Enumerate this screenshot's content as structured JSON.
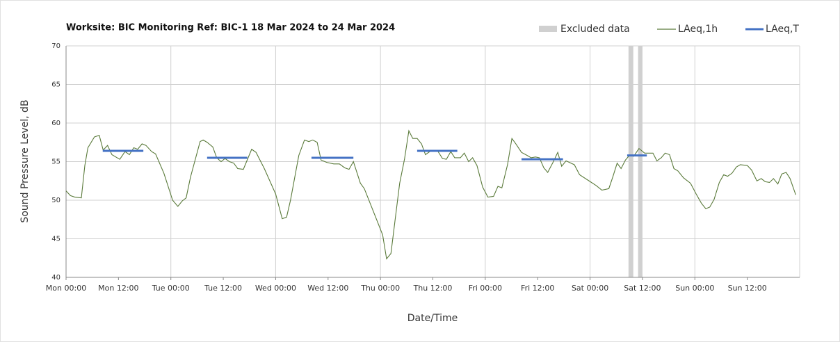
{
  "chart_data": {
    "type": "line",
    "title": "Worksite: BIC   Monitoring Ref: BIC-1    18 Mar 2024 to 24 Mar 2024",
    "x_label": "Date/Time",
    "y_label": "Sound Pressure Level, dB",
    "xlim": [
      0,
      168
    ],
    "ylim": [
      40,
      70
    ],
    "yticks": [
      40,
      45,
      50,
      55,
      60,
      65,
      70
    ],
    "xticks": [
      {
        "value": 0,
        "label": "Mon 00:00"
      },
      {
        "value": 12,
        "label": "Mon 12:00"
      },
      {
        "value": 24,
        "label": "Tue 00:00"
      },
      {
        "value": 36,
        "label": "Tue 12:00"
      },
      {
        "value": 48,
        "label": "Wed 00:00"
      },
      {
        "value": 60,
        "label": "Wed 12:00"
      },
      {
        "value": 72,
        "label": "Thu 00:00"
      },
      {
        "value": 84,
        "label": "Thu 12:00"
      },
      {
        "value": 96,
        "label": "Fri 00:00"
      },
      {
        "value": 108,
        "label": "Fri 12:00"
      },
      {
        "value": 120,
        "label": "Sat 00:00"
      },
      {
        "value": 132,
        "label": "Sat 12:00"
      },
      {
        "value": 144,
        "label": "Sun 00:00"
      },
      {
        "value": 156,
        "label": "Sun 12:00"
      }
    ],
    "grid": true,
    "excluded": {
      "name": "Excluded data",
      "color": "#d0d0d0",
      "ranges": [
        [
          128.8,
          129.9
        ],
        [
          131,
          132
        ]
      ]
    },
    "series": [
      {
        "name": "LAeq,1h",
        "color": "#5a7a3a",
        "x": [
          0,
          1,
          2,
          3.5,
          4.3,
          5,
          6.5,
          7.6,
          8.5,
          9.5,
          10.5,
          12.3,
          13.5,
          14.5,
          15.5,
          16.4,
          17.4,
          18.3,
          19.6,
          20.5,
          22.4,
          24.4,
          25.6,
          26.6,
          27.5,
          28.5,
          30.7,
          31.4,
          32.3,
          33.6,
          34.5,
          35.5,
          36.4,
          37.4,
          38.4,
          39.3,
          40.6,
          42.5,
          43.5,
          45.4,
          48,
          49.5,
          50.5,
          51.4,
          53.3,
          54.6,
          55.6,
          56.5,
          57.5,
          58.4,
          59.7,
          61.3,
          62.6,
          63.8,
          64.8,
          65.8,
          67.4,
          68.3,
          70.9,
          72.5,
          73.4,
          74.4,
          75.3,
          76.4,
          77.5,
          78.5,
          79.4,
          80.4,
          81.4,
          82.3,
          83.3,
          84.2,
          85.2,
          86.2,
          87.1,
          88.1,
          89,
          90.3,
          91.2,
          92.2,
          93.1,
          94.1,
          95.4,
          96.6,
          97.9,
          98.9,
          99.8,
          101.1,
          102.1,
          103,
          104.3,
          105.6,
          106.5,
          107.5,
          108.4,
          109.4,
          110.3,
          111.6,
          112.6,
          113.5,
          114.5,
          116.4,
          117.6,
          119.5,
          121.4,
          122.7,
          124.3,
          125.2,
          126.2,
          127.1,
          128.1,
          129,
          130,
          131.2,
          132.5,
          134.4,
          135.3,
          136.3,
          137.2,
          138.2,
          139.2,
          140.1,
          141.4,
          143,
          144.3,
          145.5,
          146.5,
          147.4,
          148.4,
          149.6,
          150.6,
          151.5,
          152.5,
          153.5,
          154.4,
          156,
          157,
          158.2,
          159.2,
          160.1,
          161.1,
          162,
          163,
          163.9,
          164.9,
          165.8,
          167.1
        ],
        "values": [
          51.2,
          50.6,
          50.4,
          50.3,
          54.5,
          56.8,
          58.2,
          58.4,
          56.5,
          57.1,
          55.9,
          55.3,
          56.3,
          55.9,
          56.8,
          56.6,
          57.3,
          57.1,
          56.3,
          56.0,
          53.5,
          50.0,
          49.2,
          49.9,
          50.3,
          53.0,
          57.6,
          57.8,
          57.5,
          56.9,
          55.5,
          55.0,
          55.4,
          55.0,
          54.8,
          54.1,
          54.0,
          56.6,
          56.2,
          54.1,
          50.8,
          47.6,
          47.8,
          50.0,
          55.8,
          57.8,
          57.6,
          57.8,
          57.5,
          55.2,
          54.9,
          54.7,
          54.7,
          54.2,
          54.0,
          55.0,
          52.2,
          51.5,
          47.8,
          45.5,
          42.4,
          43.1,
          47.2,
          52.2,
          55.3,
          59.0,
          58.0,
          58.0,
          57.3,
          55.9,
          56.3,
          56.4,
          56.3,
          55.4,
          55.3,
          56.3,
          55.5,
          55.5,
          56.1,
          55.0,
          55.5,
          54.5,
          51.7,
          50.4,
          50.5,
          51.8,
          51.6,
          54.6,
          58.0,
          57.3,
          56.2,
          55.8,
          55.5,
          55.6,
          55.5,
          54.2,
          53.6,
          55.0,
          56.2,
          54.4,
          55.1,
          54.6,
          53.3,
          52.6,
          51.9,
          51.3,
          51.5,
          53.0,
          54.8,
          54.1,
          55.2,
          55.8,
          55.7,
          56.7,
          56.1,
          56.1,
          55.1,
          55.5,
          56.1,
          55.9,
          54.1,
          53.8,
          52.9,
          52.2,
          50.8,
          49.6,
          48.9,
          49.1,
          50.1,
          52.3,
          53.3,
          53.1,
          53.5,
          54.3,
          54.6,
          54.5,
          53.9,
          52.5,
          52.8,
          52.4,
          52.3,
          52.8,
          52.1,
          53.4,
          53.6,
          52.8,
          50.7
        ]
      },
      {
        "name": "LAeq,T",
        "color": "#4472c4",
        "x_start": [
          8.4,
          32.3,
          56.2,
          80.4,
          104.3,
          128.5
        ],
        "x_end": [
          17.7,
          41.5,
          65.8,
          89.6,
          113.8,
          133
        ],
        "values": [
          56.4,
          55.5,
          55.5,
          56.4,
          55.3,
          55.8
        ]
      }
    ]
  }
}
